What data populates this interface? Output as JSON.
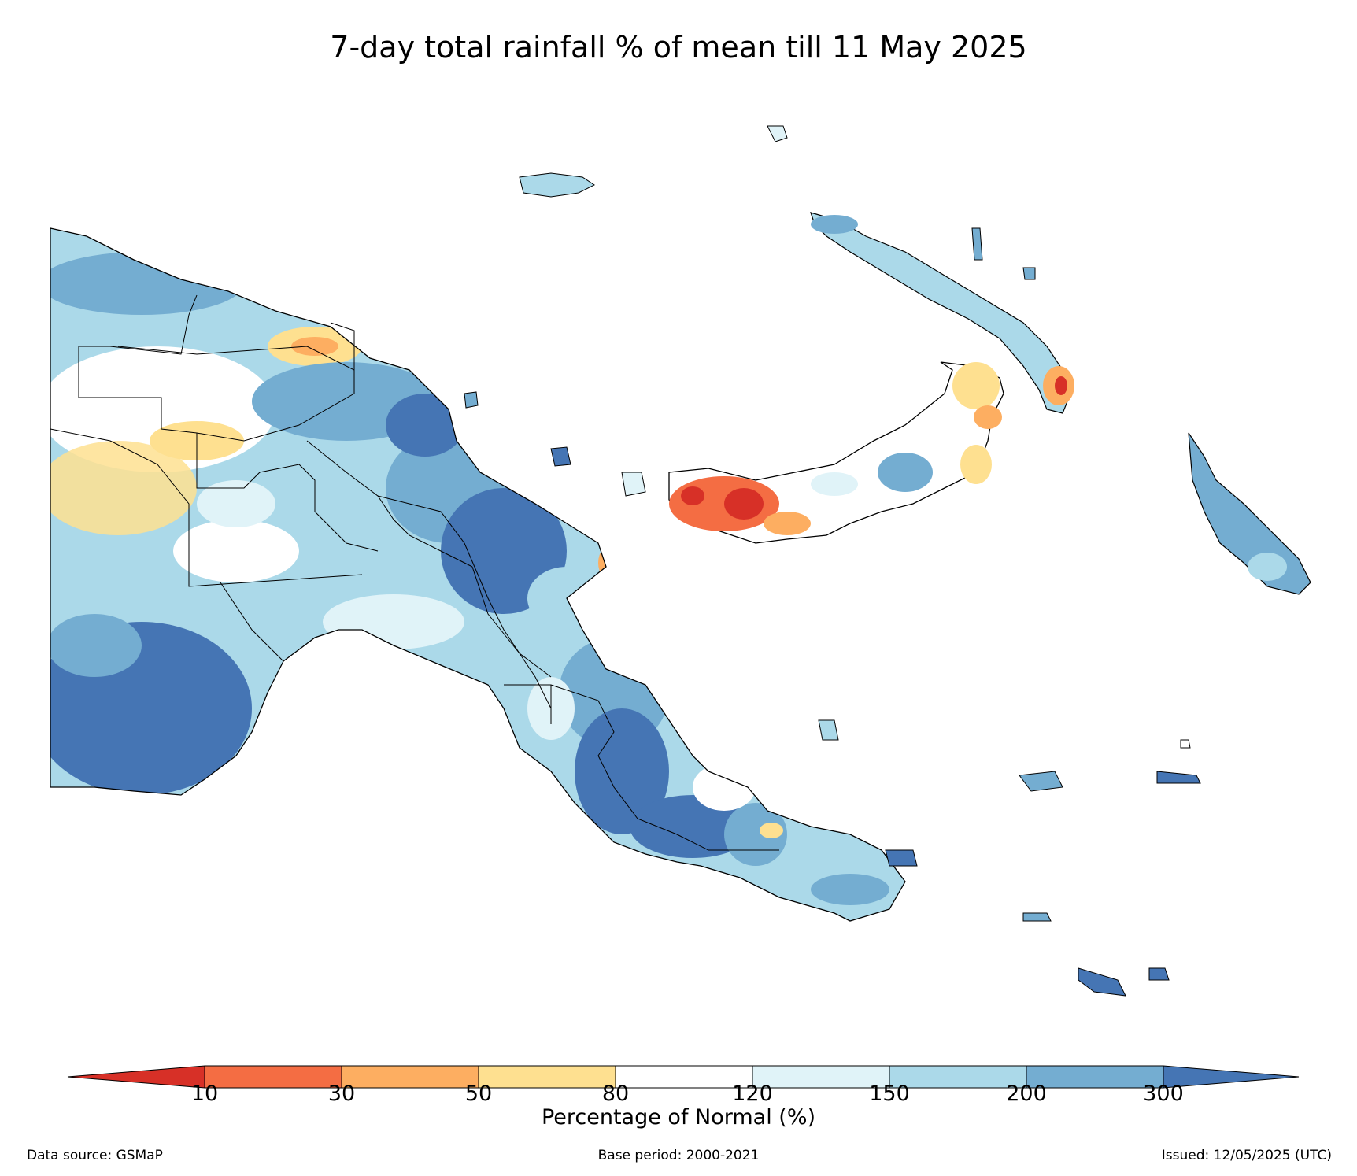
{
  "title": "7-day total rainfall % of mean till 11 May 2025",
  "colorbar": {
    "label": "Percentage of Normal (%)",
    "ticks": [
      "10",
      "30",
      "50",
      "80",
      "120",
      "150",
      "200",
      "300"
    ],
    "colors": {
      "lt10": "#d73027",
      "10-30": "#f46d43",
      "30-50": "#fdae61",
      "50-80": "#fee090",
      "80-120": "#ffffff",
      "120-150": "#e0f3f8",
      "150-200": "#abd9e9",
      "200-300": "#74add1",
      "gt300": "#4575b4"
    }
  },
  "footer": {
    "source": "Data source: GSMaP",
    "base_period": "Base period: 2000-2021",
    "issued": "Issued: 12/05/2025 (UTC)"
  }
}
